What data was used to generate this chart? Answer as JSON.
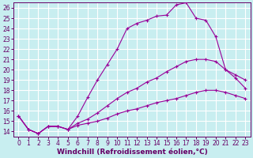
{
  "xlabel": "Windchill (Refroidissement éolien,°C)",
  "bg_color": "#c8eef0",
  "grid_color": "#ffffff",
  "line_color": "#990099",
  "xlim": [
    -0.5,
    23.5
  ],
  "ylim": [
    13.5,
    26.5
  ],
  "xticks": [
    0,
    1,
    2,
    3,
    4,
    5,
    6,
    7,
    8,
    9,
    10,
    11,
    12,
    13,
    14,
    15,
    16,
    17,
    18,
    19,
    20,
    21,
    22,
    23
  ],
  "yticks": [
    14,
    15,
    16,
    17,
    18,
    19,
    20,
    21,
    22,
    23,
    24,
    25,
    26
  ],
  "series1_x": [
    0,
    1,
    2,
    3,
    4,
    5,
    6,
    7,
    8,
    9,
    10,
    11,
    12,
    13,
    14,
    15,
    16,
    17,
    18,
    19,
    20,
    21,
    22,
    23
  ],
  "series1_y": [
    15.5,
    14.2,
    13.8,
    14.5,
    14.5,
    14.2,
    15.5,
    17.3,
    19.0,
    20.5,
    22.0,
    24.0,
    24.5,
    24.8,
    25.2,
    25.3,
    26.3,
    26.5,
    25.0,
    24.8,
    23.2,
    20.0,
    19.2,
    18.2
  ],
  "series2_x": [
    0,
    1,
    2,
    3,
    4,
    5,
    6,
    7,
    8,
    9,
    10,
    11,
    12,
    13,
    14,
    15,
    16,
    17,
    18,
    19,
    20,
    21,
    22,
    23
  ],
  "series2_y": [
    15.5,
    14.2,
    13.8,
    14.5,
    14.5,
    14.2,
    14.8,
    15.2,
    15.8,
    16.5,
    17.2,
    17.8,
    18.2,
    18.8,
    19.2,
    19.8,
    20.3,
    20.8,
    21.0,
    21.0,
    20.8,
    20.0,
    19.5,
    19.0
  ],
  "series3_x": [
    0,
    1,
    2,
    3,
    4,
    5,
    6,
    7,
    8,
    9,
    10,
    11,
    12,
    13,
    14,
    15,
    16,
    17,
    18,
    19,
    20,
    21,
    22,
    23
  ],
  "series3_y": [
    15.5,
    14.2,
    13.8,
    14.5,
    14.5,
    14.2,
    14.6,
    14.8,
    15.0,
    15.3,
    15.7,
    16.0,
    16.2,
    16.5,
    16.8,
    17.0,
    17.2,
    17.5,
    17.8,
    18.0,
    18.0,
    17.8,
    17.5,
    17.2
  ],
  "xlabel_fontsize": 6.5,
  "tick_fontsize": 5.5
}
